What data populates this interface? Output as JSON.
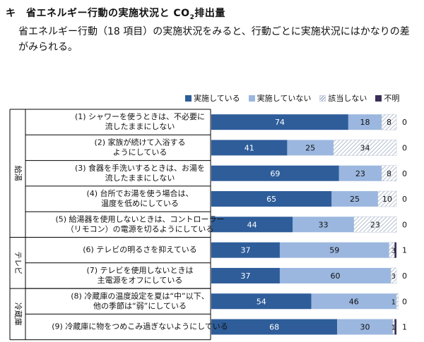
{
  "section": {
    "marker": "キ",
    "title_main": "省エネルギー行動の実施状況と CO",
    "title_sub": "2",
    "title_tail": "排出量",
    "intro": "省エネルギー行動（18 項目）の実施状況をみると、行動ごとに実施状況にはかなりの差がみられる。"
  },
  "colors": {
    "implemented": "#2e5d9a",
    "not_implemented": "#9bb7df",
    "not_applicable": "hatch",
    "unknown": "#3b2e58"
  },
  "chart_data": {
    "type": "bar",
    "orientation": "horizontal-stacked-100",
    "legend": [
      "実施している",
      "実施していない",
      "該当しない",
      "不明"
    ],
    "legend_position": "top",
    "groups": [
      {
        "label": "給湯",
        "rows": [
          0,
          4
        ]
      },
      {
        "label": "テレビ",
        "rows": [
          5,
          6
        ]
      },
      {
        "label": "冷蔵庫",
        "rows": [
          7,
          8
        ]
      }
    ],
    "categories": [
      [
        "(1) シャワーを使うときは、不必要に",
        "流したままにしない"
      ],
      [
        "(2) 家族が続けて入浴する",
        "ようにしている"
      ],
      [
        "(3) 食器を手洗いするときは、お湯を",
        "流したままにしない"
      ],
      [
        "(4) 台所でお湯を使う場合は、",
        "温度を低めにしている"
      ],
      [
        "(5) 給湯器を使用しないときは、コントローラー",
        "（リモコン）の電源を切るようにしている"
      ],
      [
        "(6) テレビの明るさを抑えている"
      ],
      [
        "(7) テレビを使用しないときは",
        "主電源をオフにしている"
      ],
      [
        "(8) 冷蔵庫の温度設定を夏は“中”以下、",
        "他の季節は“弱”にしている"
      ],
      [
        "(9) 冷蔵庫に物をつめこみ過ぎないようにしている"
      ]
    ],
    "series": [
      {
        "name": "実施している",
        "values": [
          74,
          41,
          69,
          65,
          44,
          37,
          37,
          54,
          68
        ]
      },
      {
        "name": "実施していない",
        "values": [
          18,
          25,
          23,
          25,
          33,
          59,
          60,
          46,
          30
        ]
      },
      {
        "name": "該当しない",
        "values": [
          8,
          34,
          8,
          10,
          23,
          3,
          3,
          1,
          1
        ]
      },
      {
        "name": "不明",
        "values": [
          0,
          0,
          0,
          0,
          0,
          1,
          0,
          0,
          1
        ]
      }
    ]
  }
}
